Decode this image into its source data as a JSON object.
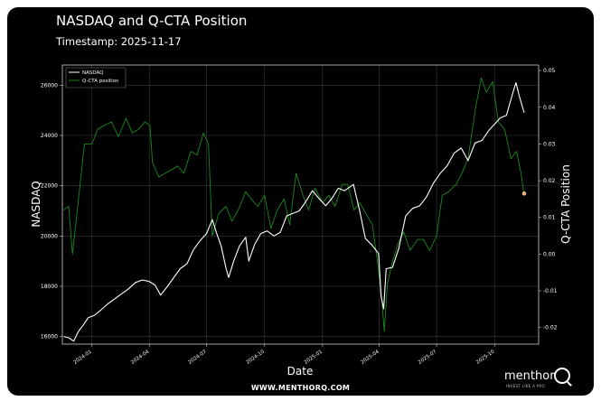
{
  "header": {
    "title": "NASDAQ and Q-CTA Position",
    "subtitle": "Timestamp: 2025-11-17"
  },
  "footer": {
    "url": "WWW.MENTHORQ.COM",
    "brand": "menthor",
    "tagline": "INVEST LIKE A PRO"
  },
  "colors": {
    "background": "#000000",
    "nasdaq": "#ffffff",
    "cta": "#1a8a1a",
    "marker": "#f4a460",
    "grid": "#444444"
  },
  "chart_data": {
    "type": "line",
    "title": "NASDAQ and Q-CTA Position",
    "xlabel": "Date",
    "ylabel": "NASDAQ",
    "y2label": "Q-CTA Position",
    "grid": true,
    "legend_position": "top-left",
    "xlim": [
      "2023-11-15",
      "2025-12-10"
    ],
    "ylim": [
      15700,
      26800
    ],
    "y2lim": [
      -0.0245,
      0.0515
    ],
    "x_ticks": [
      "2024-01",
      "2024-04",
      "2024-07",
      "2024-10",
      "2025-01",
      "2025-04",
      "2025-07",
      "2025-10"
    ],
    "x_tick_dates": [
      "2024-01-01",
      "2024-04-01",
      "2024-07-01",
      "2024-10-01",
      "2025-01-01",
      "2025-04-01",
      "2025-07-01",
      "2025-10-01"
    ],
    "y_ticks": [
      "16000",
      "18000",
      "20000",
      "22000",
      "24000",
      "26000"
    ],
    "y_tick_values": [
      16000,
      18000,
      20000,
      22000,
      24000,
      26000
    ],
    "y2_ticks": [
      "-0.02",
      "-0.01",
      "0.00",
      "0.01",
      "0.02",
      "0.03",
      "0.04",
      "0.05"
    ],
    "y2_tick_values": [
      -0.02,
      -0.01,
      0.0,
      0.01,
      0.02,
      0.03,
      0.04,
      0.05
    ],
    "series": [
      {
        "name": "NASDAQ",
        "axis": "left",
        "x": [
          "2023-11-17",
          "2023-11-25",
          "2023-12-03",
          "2023-12-10",
          "2023-12-18",
          "2023-12-26",
          "2024-01-05",
          "2024-01-15",
          "2024-01-26",
          "2024-02-06",
          "2024-02-17",
          "2024-02-28",
          "2024-03-10",
          "2024-03-21",
          "2024-03-31",
          "2024-04-10",
          "2024-04-19",
          "2024-04-30",
          "2024-05-10",
          "2024-05-20",
          "2024-05-31",
          "2024-06-10",
          "2024-06-20",
          "2024-07-01",
          "2024-07-10",
          "2024-07-17",
          "2024-07-24",
          "2024-08-01",
          "2024-08-05",
          "2024-08-13",
          "2024-08-22",
          "2024-09-01",
          "2024-09-06",
          "2024-09-15",
          "2024-09-25",
          "2024-10-05",
          "2024-10-16",
          "2024-10-26",
          "2024-11-05",
          "2024-11-15",
          "2024-11-25",
          "2024-12-05",
          "2024-12-16",
          "2024-12-26",
          "2025-01-06",
          "2025-01-16",
          "2025-01-26",
          "2025-02-05",
          "2025-02-19",
          "2025-03-01",
          "2025-03-10",
          "2025-03-20",
          "2025-03-31",
          "2025-04-04",
          "2025-04-08",
          "2025-04-12",
          "2025-04-22",
          "2025-05-02",
          "2025-05-13",
          "2025-05-24",
          "2025-06-04",
          "2025-06-15",
          "2025-06-26",
          "2025-07-07",
          "2025-07-18",
          "2025-07-29",
          "2025-08-09",
          "2025-08-20",
          "2025-08-31",
          "2025-09-11",
          "2025-09-22",
          "2025-10-03",
          "2025-10-10",
          "2025-10-20",
          "2025-10-29",
          "2025-11-04",
          "2025-11-10",
          "2025-11-17"
        ],
        "values": [
          16000,
          15950,
          15820,
          16180,
          16450,
          16750,
          16850,
          17050,
          17300,
          17500,
          17700,
          17900,
          18150,
          18250,
          18200,
          18050,
          17650,
          18000,
          18350,
          18700,
          18900,
          19450,
          19800,
          20100,
          20650,
          20100,
          19600,
          18700,
          18350,
          19000,
          19600,
          19950,
          19000,
          19650,
          20100,
          20200,
          20000,
          20150,
          20800,
          20900,
          21000,
          21350,
          21800,
          21500,
          21200,
          21500,
          21900,
          21800,
          22050,
          21000,
          19900,
          19650,
          19300,
          17600,
          17100,
          18700,
          18750,
          19500,
          20800,
          21100,
          21200,
          21550,
          22100,
          22500,
          22800,
          23300,
          23500,
          23000,
          23700,
          23800,
          24200,
          24500,
          24700,
          24800,
          25600,
          26100,
          25500,
          24900
        ]
      },
      {
        "name": "Q-CTA position",
        "axis": "right",
        "x": [
          "2023-11-17",
          "2023-11-25",
          "2023-12-01",
          "2023-12-10",
          "2023-12-20",
          "2024-01-01",
          "2024-01-10",
          "2024-01-20",
          "2024-02-01",
          "2024-02-12",
          "2024-02-24",
          "2024-03-05",
          "2024-03-15",
          "2024-03-25",
          "2024-04-02",
          "2024-04-06",
          "2024-04-16",
          "2024-04-26",
          "2024-05-06",
          "2024-05-16",
          "2024-05-26",
          "2024-06-06",
          "2024-06-16",
          "2024-06-26",
          "2024-07-04",
          "2024-07-10",
          "2024-07-20",
          "2024-08-01",
          "2024-08-10",
          "2024-08-20",
          "2024-09-01",
          "2024-09-10",
          "2024-09-20",
          "2024-10-01",
          "2024-10-11",
          "2024-10-21",
          "2024-11-01",
          "2024-11-10",
          "2024-11-20",
          "2024-12-01",
          "2024-12-10",
          "2024-12-20",
          "2025-01-01",
          "2025-01-11",
          "2025-01-21",
          "2025-02-01",
          "2025-02-10",
          "2025-02-20",
          "2025-03-01",
          "2025-03-11",
          "2025-03-21",
          "2025-03-30",
          "2025-04-05",
          "2025-04-09",
          "2025-04-14",
          "2025-04-22",
          "2025-05-01",
          "2025-05-10",
          "2025-05-20",
          "2025-06-01",
          "2025-06-10",
          "2025-06-20",
          "2025-07-01",
          "2025-07-10",
          "2025-07-20",
          "2025-08-01",
          "2025-08-10",
          "2025-08-20",
          "2025-09-01",
          "2025-09-10",
          "2025-09-18",
          "2025-09-28",
          "2025-10-07",
          "2025-10-17",
          "2025-10-27",
          "2025-11-05",
          "2025-11-12",
          "2025-11-17"
        ],
        "values": [
          0.012,
          0.013,
          0.0,
          0.014,
          0.03,
          0.03,
          0.034,
          0.035,
          0.036,
          0.032,
          0.037,
          0.033,
          0.034,
          0.036,
          0.035,
          0.025,
          0.021,
          0.022,
          0.023,
          0.024,
          0.022,
          0.028,
          0.027,
          0.033,
          0.03,
          0.005,
          0.011,
          0.013,
          0.009,
          0.012,
          0.017,
          0.015,
          0.013,
          0.016,
          0.007,
          0.012,
          0.015,
          0.008,
          0.022,
          0.016,
          0.012,
          0.018,
          0.014,
          0.016,
          0.013,
          0.019,
          0.019,
          0.012,
          0.014,
          0.011,
          0.008,
          -0.003,
          -0.012,
          -0.021,
          -0.008,
          -0.002,
          0.003,
          0.006,
          0.001,
          0.004,
          0.004,
          0.001,
          0.005,
          0.016,
          0.017,
          0.019,
          0.022,
          0.026,
          0.04,
          0.048,
          0.044,
          0.047,
          0.036,
          0.034,
          0.026,
          0.028,
          0.022,
          0.016
        ]
      }
    ],
    "marker": {
      "series": "Q-CTA position",
      "x": "2025-11-17",
      "y": 0.0165
    }
  }
}
